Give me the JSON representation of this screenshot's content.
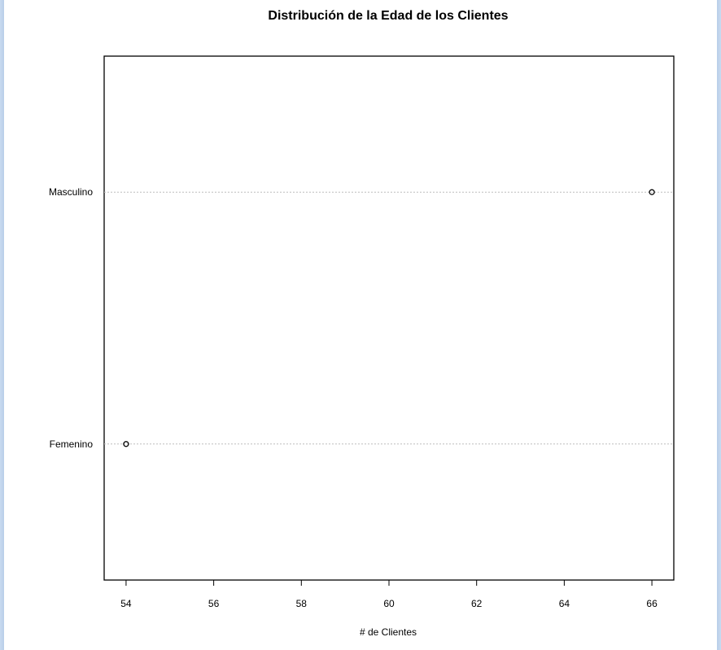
{
  "chart_data": {
    "type": "dotchart",
    "title": "Distribución de la Edad de los Clientes",
    "xlabel": "# de Clientes",
    "ylabel": "",
    "categories": [
      "Femenino",
      "Masculino"
    ],
    "values": [
      54,
      66
    ],
    "xlim": [
      53.5,
      66.5
    ],
    "xticks": [
      54,
      56,
      58,
      60,
      62,
      64,
      66
    ],
    "grid": "dotted horizontal guide lines per category",
    "legend": "none",
    "colors": {
      "points": "#000000",
      "guides": "#bebebe",
      "frame": "#000000"
    }
  }
}
